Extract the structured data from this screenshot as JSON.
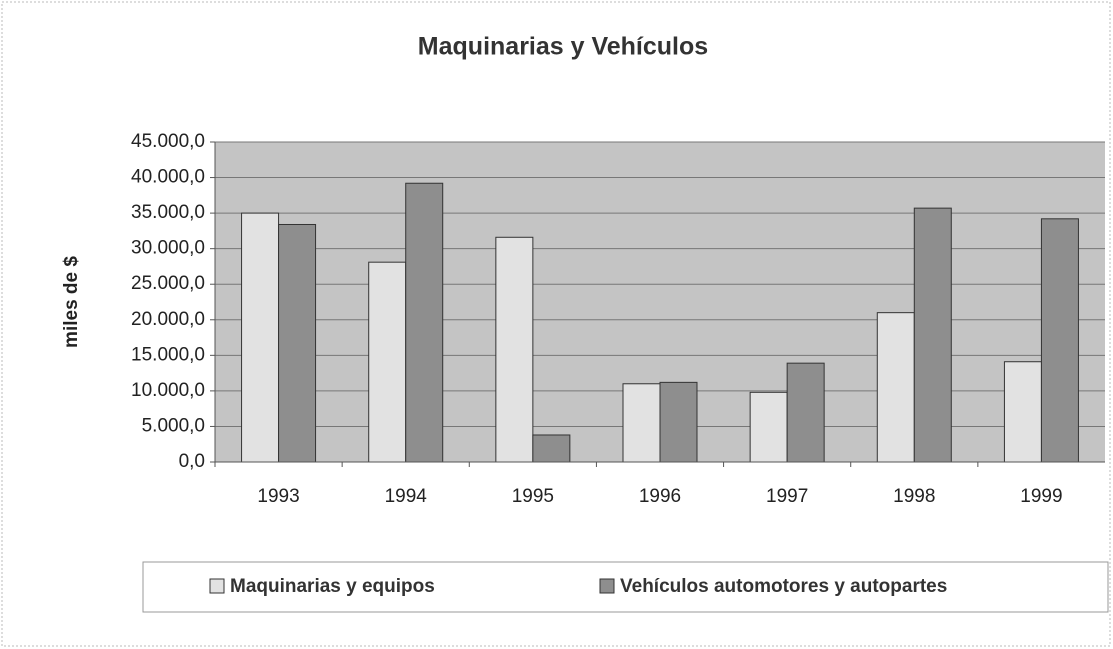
{
  "chart_data": {
    "type": "bar",
    "title": "Maquinarias y Vehículos",
    "y_label": "miles de $",
    "categories": [
      "1993",
      "1994",
      "1995",
      "1996",
      "1997",
      "1998",
      "1999"
    ],
    "series": [
      {
        "name": "Maquinarias y equipos",
        "color": "#e2e2e2",
        "values": [
          35000,
          28100,
          31600,
          11000,
          9800,
          21000,
          14100
        ]
      },
      {
        "name": "Vehículos automotores y autopartes",
        "color": "#8e8e8e",
        "values": [
          33400,
          39200,
          3800,
          11200,
          13900,
          35700,
          34200
        ]
      }
    ],
    "ylim": [
      0,
      45000
    ],
    "yticks": [
      {
        "value": 0,
        "label": "0,0"
      },
      {
        "value": 5000,
        "label": "5.000,0"
      },
      {
        "value": 10000,
        "label": "10.000,0"
      },
      {
        "value": 15000,
        "label": "15.000,0"
      },
      {
        "value": 20000,
        "label": "20.000,0"
      },
      {
        "value": 25000,
        "label": "25.000,0"
      },
      {
        "value": 30000,
        "label": "30.000,0"
      },
      {
        "value": 35000,
        "label": "35.000,0"
      },
      {
        "value": 40000,
        "label": "40.000,0"
      },
      {
        "value": 45000,
        "label": "45.000,0"
      }
    ],
    "grid": true,
    "legend": "bottom"
  }
}
